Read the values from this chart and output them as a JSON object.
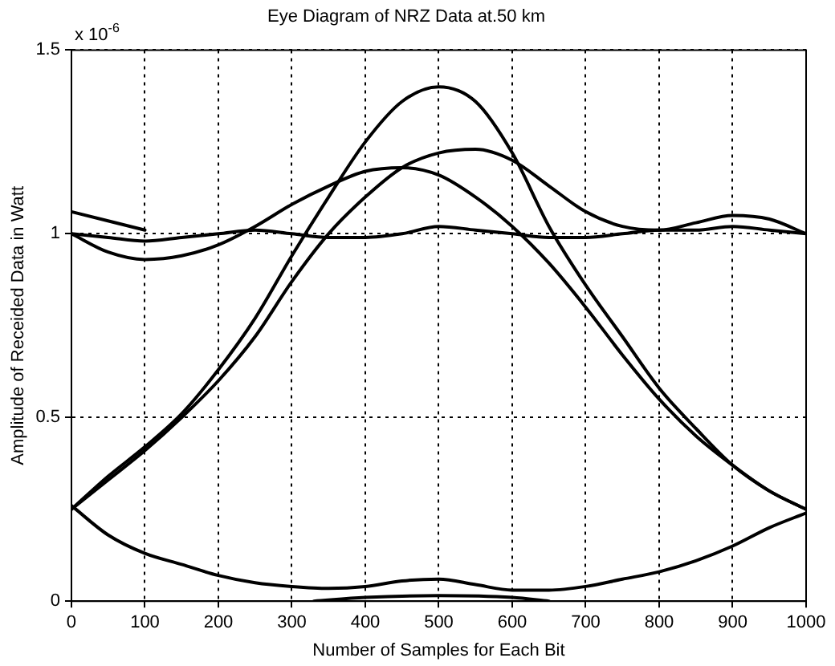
{
  "chart_data": {
    "type": "line",
    "title": "Eye Diagram of NRZ Data at.50 km",
    "xlabel": "Number of Samples for Each Bit",
    "ylabel": "Amplitude of Receided Data in Watt",
    "annotations": [
      "x 10$^{-6}$"
    ],
    "x": [
      0,
      50,
      100,
      150,
      200,
      250,
      300,
      350,
      400,
      450,
      500,
      550,
      600,
      650,
      700,
      750,
      800,
      850,
      900,
      950,
      1000
    ],
    "series": [
      {
        "color": "#000000",
        "values": [
          0.25,
          0.34,
          0.42,
          0.51,
          0.63,
          0.77,
          0.94,
          1.1,
          1.25,
          1.36,
          1.4,
          1.36,
          1.22,
          1.02,
          0.86,
          0.72,
          0.58,
          0.47,
          0.37,
          0.3,
          0.25
        ]
      },
      {
        "color": "#000000",
        "values": [
          0.25,
          0.33,
          0.41,
          0.5,
          0.6,
          0.72,
          0.87,
          1.0,
          1.1,
          1.18,
          1.22,
          1.23,
          1.2,
          1.13,
          1.06,
          1.02,
          1.01,
          1.03,
          1.05,
          1.04,
          1.0
        ]
      },
      {
        "color": "#000000",
        "values": [
          1.0,
          0.95,
          0.93,
          0.94,
          0.97,
          1.02,
          1.08,
          1.13,
          1.17,
          1.18,
          1.16,
          1.1,
          1.02,
          0.92,
          0.8,
          0.67,
          0.55,
          0.45,
          0.37,
          0.3,
          0.25
        ]
      },
      {
        "color": "#000000",
        "values": [
          1.0,
          0.99,
          0.98,
          0.99,
          1.0,
          1.01,
          1.0,
          0.99,
          0.99,
          1.0,
          1.02,
          1.01,
          1.0,
          0.99,
          0.99,
          1.0,
          1.01,
          1.01,
          1.02,
          1.01,
          1.0
        ]
      },
      {
        "color": "#000000",
        "x": [
          0,
          100
        ],
        "values": [
          1.06,
          1.01
        ]
      },
      {
        "color": "#000000",
        "values": [
          0.26,
          0.18,
          0.13,
          0.1,
          0.07,
          0.05,
          0.04,
          0.035,
          0.04,
          0.055,
          0.06,
          0.045,
          0.03,
          0.03,
          0.04,
          0.06,
          0.08,
          0.11,
          0.15,
          0.2,
          0.24
        ]
      },
      {
        "color": "#000000",
        "x": [
          330,
          400,
          500,
          600,
          650
        ],
        "values": [
          0.0,
          0.01,
          0.015,
          0.01,
          0.0
        ]
      }
    ],
    "xlim": [
      0,
      1000
    ],
    "xticks": [
      0,
      100,
      200,
      300,
      400,
      500,
      600,
      700,
      800,
      900,
      1000
    ],
    "ylim": [
      0,
      1.5
    ],
    "yticks": [
      0,
      {
        "value": 0.5,
        "label": "0.5"
      },
      1,
      1.5
    ],
    "grid": true,
    "legend": false,
    "marker": "none",
    "line_style": "solid"
  }
}
